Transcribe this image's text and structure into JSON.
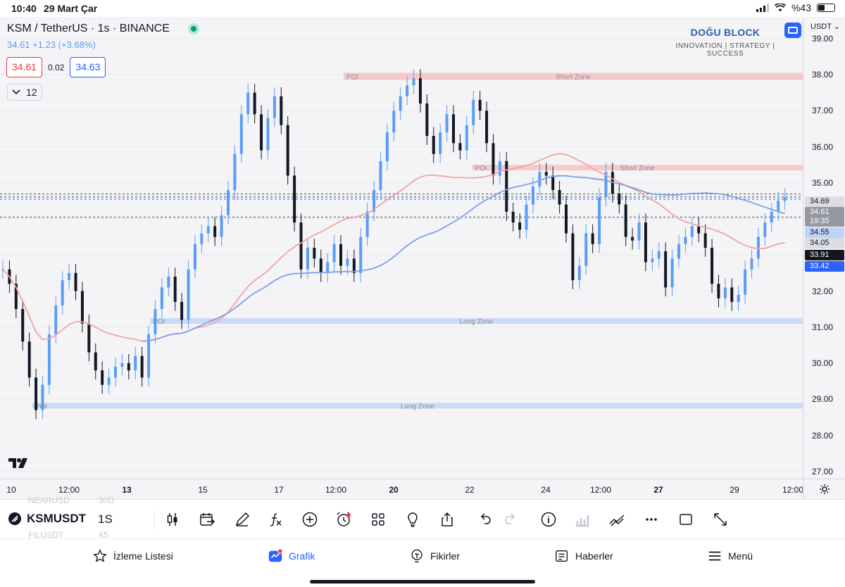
{
  "status_bar": {
    "time": "10:40",
    "date": "29 Mart Çar",
    "battery": "%43",
    "battery_level": 0.43
  },
  "chart": {
    "symbol_title": "KSM / TetherUS · 1s · BINANCE",
    "change_text": "34.61  +1.23 (+3.68%)",
    "bid": "34.61",
    "spread": "0.02",
    "ask": "34.63",
    "collapse_count": "12",
    "brand_name": "DOĞU BLOCK",
    "brand_tagline": "INNOVATION  |  STRATEGY  |  SUCCESS",
    "currency": "USDT",
    "price_ticks": [
      "39.00",
      "38.00",
      "37.00",
      "36.00",
      "35.00",
      "34.00",
      "33.00",
      "32.00",
      "31.00",
      "30.00",
      "29.00",
      "28.00",
      "27.00"
    ],
    "price_tags": [
      {
        "label": "34.69",
        "color": "#dcdde2",
        "text": "#131722"
      },
      {
        "label": "34.61",
        "color": "#9598a1",
        "text": "#ffffff"
      },
      {
        "label": "19:35",
        "color": "#9598a1",
        "text": "#ffffff"
      },
      {
        "label": "34.55",
        "color": "#bcd4f6",
        "text": "#131722"
      },
      {
        "label": "34.05",
        "color": "#dcdde2",
        "text": "#131722"
      },
      {
        "label": "33.91",
        "color": "#131722",
        "text": "#ffffff"
      },
      {
        "label": "33.42",
        "color": "#2962ff",
        "text": "#ffffff"
      }
    ],
    "time_ticks": [
      {
        "label": "10",
        "bold": false
      },
      {
        "label": "12:00",
        "bold": false
      },
      {
        "label": "13",
        "bold": true
      },
      {
        "label": "15",
        "bold": false
      },
      {
        "label": "17",
        "bold": false
      },
      {
        "label": "12:00",
        "bold": false
      },
      {
        "label": "20",
        "bold": true
      },
      {
        "label": "22",
        "bold": false
      },
      {
        "label": "24",
        "bold": false
      },
      {
        "label": "12:00",
        "bold": false
      },
      {
        "label": "27",
        "bold": true
      },
      {
        "label": "29",
        "bold": false
      },
      {
        "label": "12:00",
        "bold": false
      }
    ],
    "zones": [
      {
        "poi": "POI",
        "label": "Short Zone",
        "price_top": 38.05,
        "price_bottom": 37.85,
        "type": "short",
        "start_ratio": 0.428
      },
      {
        "poi": "POI",
        "label": "Short Zone",
        "price_top": 35.5,
        "price_bottom": 35.35,
        "type": "short",
        "start_ratio": 0.588
      },
      {
        "poi": "POI",
        "label": "Long Zone",
        "price_top": 31.25,
        "price_bottom": 31.1,
        "type": "long",
        "start_ratio": 0.187
      },
      {
        "poi": "POI",
        "label": "Long Zone",
        "price_top": 28.9,
        "price_bottom": 28.75,
        "type": "long",
        "start_ratio": 0.04
      }
    ],
    "colors": {
      "up": "#5b9cf6",
      "down": "#131722",
      "short_zone": "#f7c6c6",
      "long_zone": "#c6d8f5",
      "ma_red": "#f0a59f",
      "ma_blue": "#7e9fe8"
    }
  },
  "chart_data": {
    "type": "line",
    "title": "KSM / TetherUS · 1s · BINANCE",
    "xlabel": "",
    "ylabel": "",
    "ylim": [
      26.8,
      39.6
    ],
    "series": [
      {
        "values": [
          32.6,
          32.2,
          31.5,
          30.6,
          29.6,
          28.7,
          29.4,
          30.8,
          31.6,
          32.3,
          32.5,
          32.0,
          31.1,
          30.3,
          29.8,
          29.4,
          29.6,
          29.9,
          30.0,
          29.8,
          30.2,
          29.6,
          30.8,
          31.5,
          32.1,
          32.4,
          31.7,
          31.2,
          32.6,
          33.3,
          33.6,
          33.8,
          33.5,
          34.1,
          34.8,
          35.8,
          36.9,
          37.5,
          36.9,
          35.9,
          36.8,
          37.4,
          36.6,
          35.2,
          33.9,
          32.6,
          33.2,
          32.9,
          32.5,
          32.8,
          33.3,
          32.7,
          32.9,
          32.5,
          33.5,
          34.2,
          34.8,
          35.6,
          36.4,
          37.0,
          37.4,
          37.7,
          37.9,
          37.2,
          36.3,
          35.8,
          36.4,
          36.9,
          36.1,
          35.9,
          36.6,
          37.3,
          37.0,
          36.1,
          35.2,
          35.6,
          34.2,
          33.9,
          33.7,
          34.4,
          34.9,
          35.3,
          35.2,
          34.8,
          34.4,
          33.6,
          32.3,
          32.7,
          33.6,
          33.3,
          34.6,
          35.3,
          34.7,
          34.4,
          33.5,
          33.4,
          33.9,
          32.8,
          32.9,
          33.1,
          32.1,
          32.9,
          33.3,
          33.5,
          33.8,
          33.6,
          33.2,
          32.2,
          31.8,
          32.1,
          31.7,
          31.9,
          32.6,
          32.9,
          33.5,
          33.9,
          34.2,
          34.5,
          34.6
        ]
      }
    ]
  },
  "toolbar": {
    "symbol": "KSMUSDT",
    "interval": "1S",
    "ghost_top_symbol": "NEARUSD",
    "ghost_top_interval": "30D",
    "ghost_bottom_symbol": "FILUSDT",
    "ghost_bottom_interval": "4S"
  },
  "tabs": {
    "watchlist": "İzleme Listesi",
    "chart": "Grafik",
    "ideas": "Fikirler",
    "news": "Haberler",
    "menu": "Menü"
  }
}
